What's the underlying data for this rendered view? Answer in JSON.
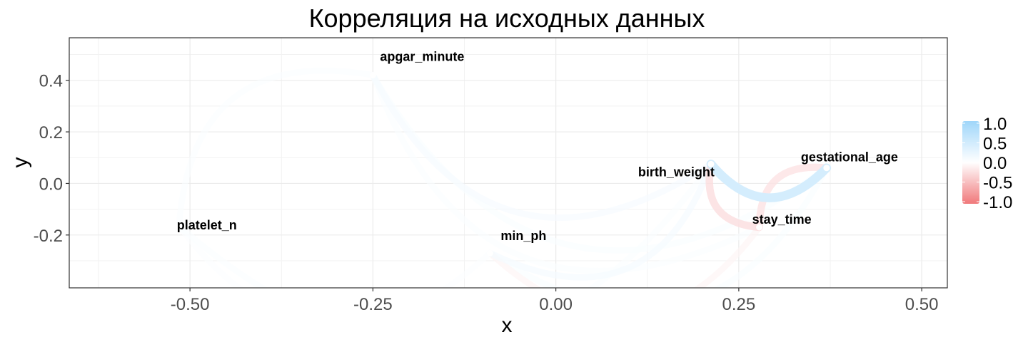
{
  "chart_data": {
    "type": "network-correlation",
    "title": "Корреляция на исходных данных",
    "xlabel": "x",
    "ylabel": "y",
    "xlim": [
      -0.665,
      0.535
    ],
    "ylim": [
      -0.405,
      0.565
    ],
    "xticks": [
      {
        "value": -0.5,
        "label": "-0.50"
      },
      {
        "value": -0.25,
        "label": "-0.25"
      },
      {
        "value": 0.0,
        "label": "0.00"
      },
      {
        "value": 0.25,
        "label": "0.25"
      },
      {
        "value": 0.5,
        "label": "0.50"
      }
    ],
    "yticks": [
      {
        "value": 0.4,
        "label": "0.4"
      },
      {
        "value": 0.2,
        "label": "0.2"
      },
      {
        "value": 0.0,
        "label": "0.0"
      },
      {
        "value": -0.2,
        "label": "-0.2"
      }
    ],
    "nodes": [
      {
        "id": "apgar_minute",
        "label": "apgar_minute",
        "x": -0.25,
        "y": 0.42
      },
      {
        "id": "platelet_n",
        "label": "platelet_n",
        "x": -0.515,
        "y": -0.165
      },
      {
        "id": "min_ph",
        "label": "min_ph",
        "x": -0.09,
        "y": -0.27
      },
      {
        "id": "birth_weight",
        "label": "birth_weight",
        "x": 0.212,
        "y": 0.075
      },
      {
        "id": "gestational_age",
        "label": "gestational_age",
        "x": 0.37,
        "y": 0.06
      },
      {
        "id": "stay_time",
        "label": "stay_time",
        "x": 0.278,
        "y": -0.17
      }
    ],
    "edges": [
      {
        "from": "birth_weight",
        "to": "gestational_age",
        "r": 0.45
      },
      {
        "from": "birth_weight",
        "to": "stay_time",
        "r": -0.25
      },
      {
        "from": "gestational_age",
        "to": "stay_time",
        "r": -0.22
      },
      {
        "from": "apgar_minute",
        "to": "birth_weight",
        "r": 0.09
      },
      {
        "from": "apgar_minute",
        "to": "gestational_age",
        "r": 0.06
      },
      {
        "from": "apgar_minute",
        "to": "platelet_n",
        "r": 0.05
      },
      {
        "from": "apgar_minute",
        "to": "stay_time",
        "r": 0.05
      },
      {
        "from": "min_ph",
        "to": "birth_weight",
        "r": 0.1
      },
      {
        "from": "min_ph",
        "to": "gestational_age",
        "r": 0.06
      },
      {
        "from": "platelet_n",
        "to": "birth_weight",
        "r": 0.05
      },
      {
        "from": "platelet_n",
        "to": "min_ph",
        "r": 0.04
      },
      {
        "from": "min_ph",
        "to": "stay_time",
        "r": -0.08
      }
    ],
    "legend": {
      "position": "right",
      "labels": [
        "1.0",
        "0.5",
        "0.0",
        "-0.5",
        "-1.0"
      ],
      "colors": {
        "high": "#9fd6fa",
        "mid": "#ffffff",
        "low": "#f0787a"
      }
    },
    "grid": true
  }
}
